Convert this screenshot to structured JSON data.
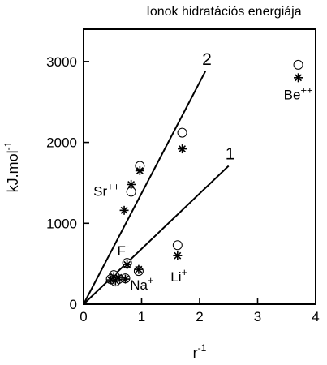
{
  "chart_data": {
    "type": "scatter",
    "title": "Ionok hidratációs energiája",
    "xlabel": "r",
    "xlabel_sup": "-1",
    "ylabel": "kJ.mol",
    "ylabel_sup": "-1",
    "xlim": [
      0,
      4
    ],
    "ylim": [
      0,
      3400
    ],
    "xticks": [
      0,
      1,
      2,
      3,
      4
    ],
    "yticks": [
      0,
      1000,
      2000,
      3000
    ],
    "grid": false,
    "series": [
      {
        "marker": "open-circle",
        "points": [
          {
            "x": 3.7,
            "y": 2960
          },
          {
            "x": 1.7,
            "y": 2120
          },
          {
            "x": 0.97,
            "y": 1710
          },
          {
            "x": 0.82,
            "y": 1390
          },
          {
            "x": 1.62,
            "y": 730
          },
          {
            "x": 0.75,
            "y": 510
          },
          {
            "x": 0.95,
            "y": 410
          },
          {
            "x": 0.72,
            "y": 320
          },
          {
            "x": 0.6,
            "y": 310
          },
          {
            "x": 0.52,
            "y": 360
          },
          {
            "x": 0.47,
            "y": 310
          },
          {
            "x": 0.55,
            "y": 280
          }
        ]
      },
      {
        "marker": "asterisk",
        "points": [
          {
            "x": 3.7,
            "y": 2800
          },
          {
            "x": 1.7,
            "y": 1920
          },
          {
            "x": 0.97,
            "y": 1650
          },
          {
            "x": 0.82,
            "y": 1480
          },
          {
            "x": 0.7,
            "y": 1160
          },
          {
            "x": 1.62,
            "y": 600
          },
          {
            "x": 0.75,
            "y": 490
          },
          {
            "x": 0.95,
            "y": 430
          },
          {
            "x": 0.72,
            "y": 310
          },
          {
            "x": 0.6,
            "y": 330
          },
          {
            "x": 0.52,
            "y": 340
          },
          {
            "x": 0.47,
            "y": 300
          },
          {
            "x": 0.55,
            "y": 290
          }
        ]
      }
    ],
    "lines": [
      {
        "label": "1",
        "from": [
          0,
          0
        ],
        "to": [
          2.5,
          1710
        ]
      },
      {
        "label": "2",
        "from": [
          0,
          0
        ],
        "to": [
          2.1,
          2880
        ]
      }
    ],
    "annotations": [
      {
        "base": "Be",
        "sup": "++",
        "x": 3.45,
        "y": 2530
      },
      {
        "base": "Sr",
        "sup": "++",
        "x": 0.17,
        "y": 1340
      },
      {
        "base": "F",
        "sup": "-",
        "x": 0.58,
        "y": 600
      },
      {
        "base": "Li",
        "sup": "+",
        "x": 1.5,
        "y": 280
      },
      {
        "base": "Na",
        "sup": "+",
        "x": 0.8,
        "y": 180
      }
    ]
  }
}
